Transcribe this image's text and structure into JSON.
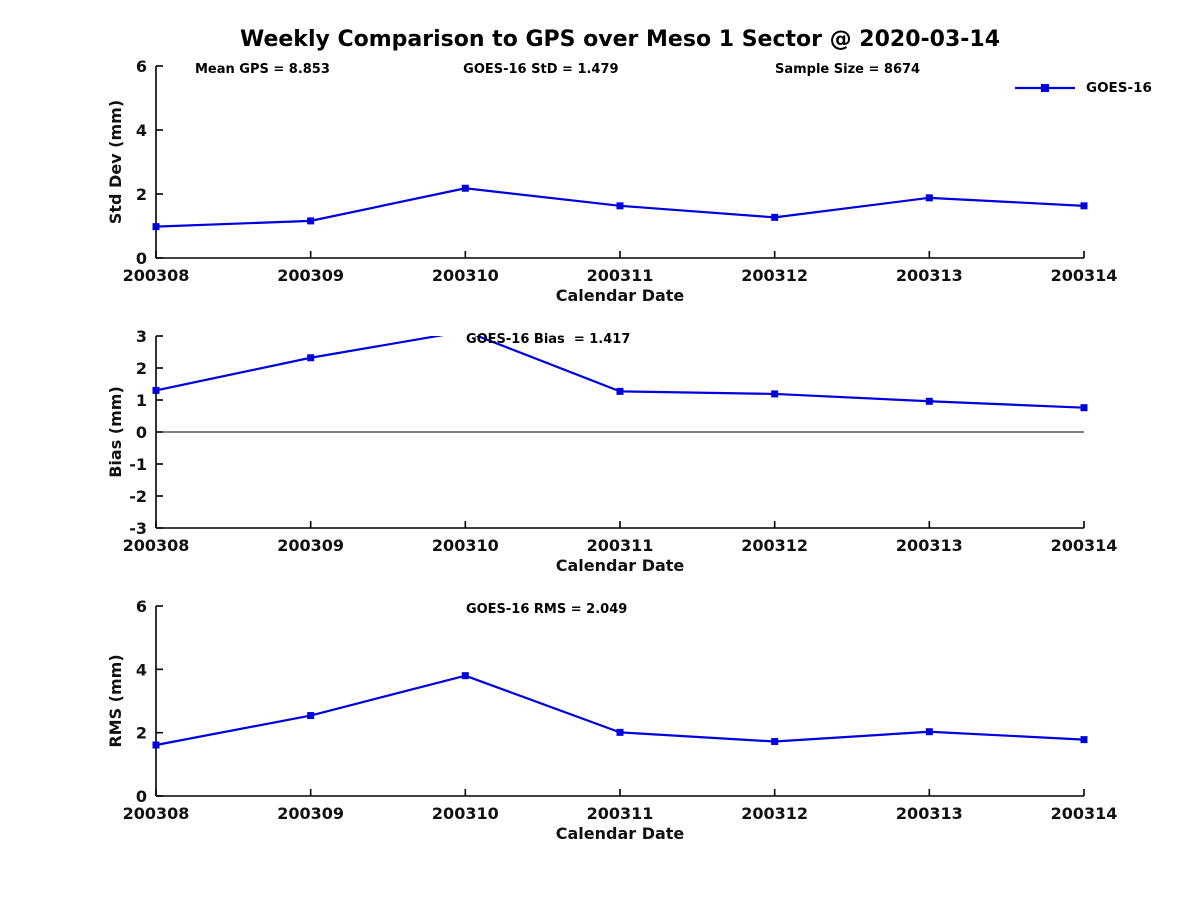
{
  "figure": {
    "title": "Weekly Comparison to GPS over Meso 1 Sector @ 2020-03-14",
    "background": "#ffffff"
  },
  "legend": {
    "label": "GOES-16",
    "line_color": "#0000dd",
    "marker": "filled-square"
  },
  "chart_data": [
    {
      "type": "line",
      "name": "std-dev-vs-date",
      "title": "",
      "xlabel": "Calendar Date",
      "ylabel": "Std Dev (mm)",
      "categories": [
        "200308",
        "200309",
        "200310",
        "200311",
        "200312",
        "200313",
        "200314"
      ],
      "series": [
        {
          "name": "GOES-16",
          "color": "#0000dd",
          "marker": "square",
          "values": [
            0.98,
            1.16,
            2.18,
            1.63,
            1.27,
            1.88,
            1.63
          ]
        }
      ],
      "ylim": [
        0,
        6
      ],
      "yticks": [
        0,
        2,
        4,
        6
      ],
      "grid": false,
      "legend_position": "top-right-no-frame",
      "annotations": [
        {
          "text": "Mean GPS = 8.853",
          "fx": 0.042
        },
        {
          "text": "GOES-16 StD = 1.479",
          "fx": 0.331
        },
        {
          "text": "Sample Size = 8674",
          "fx": 0.667
        }
      ]
    },
    {
      "type": "line",
      "name": "bias-vs-date",
      "title": "",
      "xlabel": "Calendar Date",
      "ylabel": "Bias (mm)",
      "categories": [
        "200308",
        "200309",
        "200310",
        "200311",
        "200312",
        "200313",
        "200314"
      ],
      "series": [
        {
          "name": "GOES-16",
          "color": "#0000dd",
          "marker": "square",
          "values": [
            1.3,
            2.32,
            3.15,
            1.27,
            1.19,
            0.96,
            0.76
          ]
        }
      ],
      "ylim": [
        -3,
        3
      ],
      "yticks": [
        3,
        2,
        1,
        0,
        -1,
        -2,
        -3
      ],
      "zero_line": true,
      "grid": false,
      "annotations": [
        {
          "text": "GOES-16 Bias  = 1.417",
          "fx": 0.334
        }
      ]
    },
    {
      "type": "line",
      "name": "rms-vs-date",
      "title": "",
      "xlabel": "Calendar Date",
      "ylabel": "RMS (mm)",
      "categories": [
        "200308",
        "200309",
        "200310",
        "200311",
        "200312",
        "200313",
        "200314"
      ],
      "series": [
        {
          "name": "GOES-16",
          "color": "#0000dd",
          "marker": "square",
          "values": [
            1.61,
            2.54,
            3.8,
            2.01,
            1.72,
            2.03,
            1.78
          ]
        }
      ],
      "ylim": [
        0,
        6
      ],
      "yticks": [
        0,
        2,
        4,
        6
      ],
      "grid": false,
      "annotations": [
        {
          "text": "GOES-16 RMS = 2.049",
          "fx": 0.334
        }
      ]
    }
  ]
}
